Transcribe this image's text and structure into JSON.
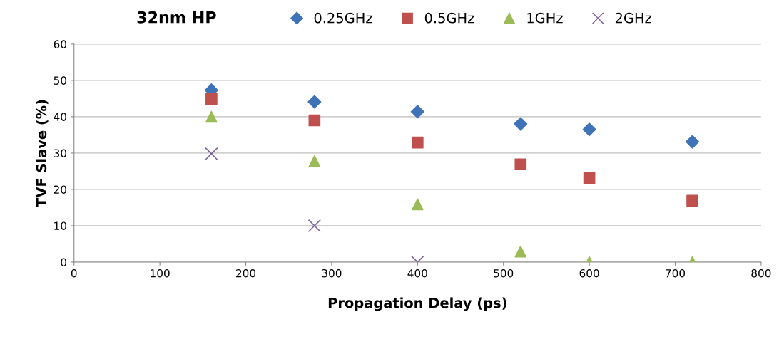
{
  "chart_data": {
    "type": "scatter",
    "title": "32nm HP",
    "xlabel": "Propagation Delay (ps)",
    "ylabel": "TVF Slave (%)",
    "xlim": [
      0,
      800
    ],
    "xticks": [
      0,
      100,
      200,
      300,
      400,
      500,
      600,
      700,
      800
    ],
    "ylim": [
      0,
      60
    ],
    "yticks": [
      0,
      10,
      20,
      30,
      40,
      50,
      60
    ],
    "grid": "y",
    "legend": "top",
    "series": [
      {
        "name": "0.25GHz",
        "color": "#3f73b8",
        "marker": "diamond",
        "x": [
          160,
          280,
          400,
          520,
          600,
          720
        ],
        "values": [
          47.3,
          44.1,
          41.4,
          38.0,
          36.5,
          33.1
        ]
      },
      {
        "name": "0.5GHz",
        "color": "#c0504d",
        "marker": "square",
        "x": [
          160,
          280,
          400,
          520,
          600,
          720
        ],
        "values": [
          44.9,
          39.0,
          32.9,
          26.9,
          23.1,
          16.9
        ]
      },
      {
        "name": "1GHz",
        "color": "#9bbb59",
        "marker": "triangle",
        "x": [
          160,
          280,
          400,
          520,
          600,
          720
        ],
        "values": [
          40.0,
          27.8,
          15.9,
          2.9,
          0,
          0
        ]
      },
      {
        "name": "2GHz",
        "color": "#8064a2",
        "marker": "cross",
        "x": [
          160,
          280,
          400
        ],
        "values": [
          29.8,
          10.0,
          0
        ]
      }
    ]
  }
}
